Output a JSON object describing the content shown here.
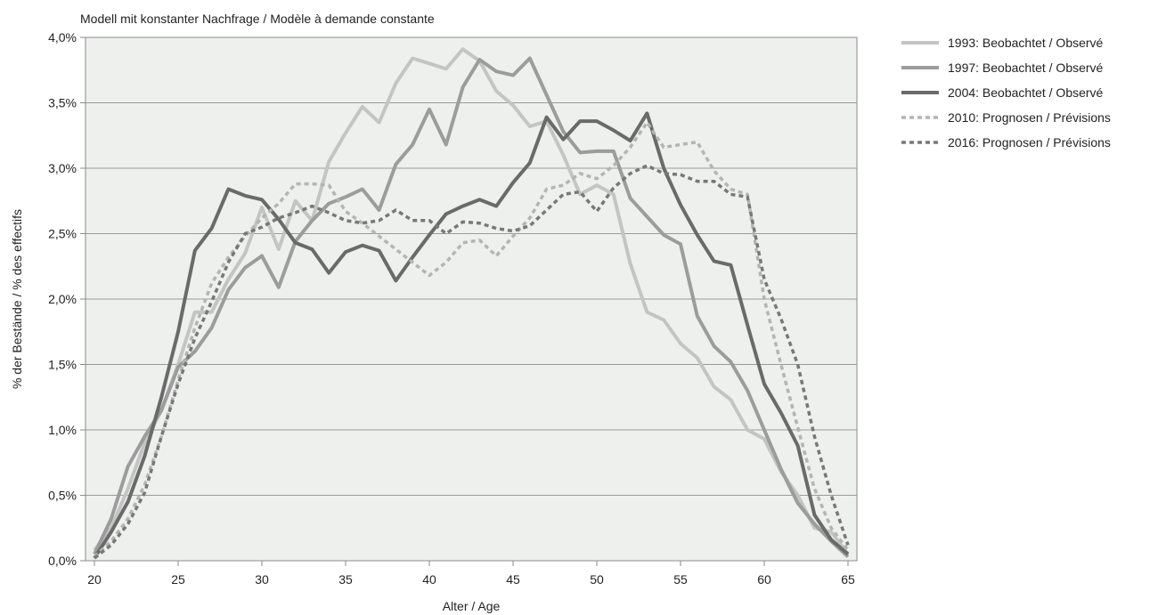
{
  "chart_data": {
    "type": "line",
    "title": "Modell mit konstanter Nachfrage / Modèle à demande constante",
    "xlabel": "Alter / Age",
    "ylabel": "% der Bestände / % des effectifs",
    "xlim": [
      20,
      65
    ],
    "ylim": [
      0,
      4.0
    ],
    "x_ticks": [
      "20",
      "25",
      "30",
      "35",
      "40",
      "45",
      "50",
      "55",
      "60",
      "65"
    ],
    "y_ticks": [
      "0,0%",
      "0,5%",
      "1,0%",
      "1,5%",
      "2,0%",
      "2,5%",
      "3,0%",
      "3,5%",
      "4,0%"
    ],
    "grid": "horizontal",
    "legend_position": "right",
    "x": [
      20,
      21,
      22,
      23,
      24,
      25,
      26,
      27,
      28,
      29,
      30,
      31,
      32,
      33,
      34,
      35,
      36,
      37,
      38,
      39,
      40,
      41,
      42,
      43,
      44,
      45,
      46,
      47,
      48,
      49,
      50,
      51,
      52,
      53,
      54,
      55,
      56,
      57,
      58,
      59,
      60,
      61,
      62,
      63,
      64,
      65
    ],
    "series": [
      {
        "name": "1993: Beobachtet / Observé",
        "color": "#c4c4c4",
        "dash": "solid",
        "values": [
          0.08,
          0.25,
          0.55,
          0.9,
          1.15,
          1.5,
          1.9,
          1.9,
          2.15,
          2.35,
          2.7,
          2.38,
          2.75,
          2.6,
          3.05,
          3.27,
          3.47,
          3.35,
          3.65,
          3.84,
          3.8,
          3.76,
          3.91,
          3.82,
          3.59,
          3.48,
          3.32,
          3.36,
          3.1,
          2.8,
          2.87,
          2.8,
          2.27,
          1.9,
          1.84,
          1.66,
          1.55,
          1.33,
          1.23,
          1.0,
          0.93,
          0.68,
          0.5,
          0.25,
          0.22,
          0.05
        ]
      },
      {
        "name": "1997: Beobachtet / Observé",
        "color": "#9c9c9c",
        "dash": "solid",
        "values": [
          0.05,
          0.32,
          0.72,
          0.95,
          1.15,
          1.48,
          1.6,
          1.78,
          2.07,
          2.24,
          2.33,
          2.09,
          2.44,
          2.6,
          2.73,
          2.78,
          2.84,
          2.68,
          3.03,
          3.18,
          3.45,
          3.18,
          3.62,
          3.83,
          3.74,
          3.71,
          3.84,
          3.56,
          3.28,
          3.12,
          3.13,
          3.13,
          2.77,
          2.63,
          2.49,
          2.42,
          1.87,
          1.64,
          1.52,
          1.3,
          1.0,
          0.7,
          0.44,
          0.28,
          0.15,
          0.03
        ]
      },
      {
        "name": "2004: Beobachtet / Observé",
        "color": "#6a6a6a",
        "dash": "solid",
        "values": [
          0.02,
          0.22,
          0.45,
          0.8,
          1.25,
          1.75,
          2.37,
          2.54,
          2.84,
          2.79,
          2.76,
          2.61,
          2.43,
          2.38,
          2.2,
          2.36,
          2.41,
          2.37,
          2.14,
          2.32,
          2.49,
          2.65,
          2.71,
          2.76,
          2.71,
          2.89,
          3.04,
          3.39,
          3.22,
          3.36,
          3.36,
          3.29,
          3.21,
          3.42,
          3.0,
          2.72,
          2.49,
          2.29,
          2.26,
          1.8,
          1.35,
          1.13,
          0.88,
          0.35,
          0.16,
          0.05
        ]
      },
      {
        "name": "2010: Prognosen / Prévisions",
        "color": "#b4b4b4",
        "dash": "dotted",
        "values": [
          0.03,
          0.15,
          0.32,
          0.58,
          0.95,
          1.38,
          1.78,
          2.12,
          2.32,
          2.48,
          2.62,
          2.73,
          2.88,
          2.88,
          2.87,
          2.67,
          2.58,
          2.48,
          2.38,
          2.28,
          2.18,
          2.28,
          2.43,
          2.45,
          2.33,
          2.48,
          2.62,
          2.84,
          2.87,
          2.96,
          2.92,
          3.02,
          3.16,
          3.35,
          3.16,
          3.18,
          3.2,
          2.98,
          2.84,
          2.8,
          2.0,
          1.5,
          1.02,
          0.55,
          0.25,
          0.08
        ]
      },
      {
        "name": "2016: Prognosen / Prévisions",
        "color": "#787878",
        "dash": "dotted",
        "values": [
          0.02,
          0.12,
          0.28,
          0.52,
          0.95,
          1.35,
          1.7,
          1.98,
          2.28,
          2.5,
          2.55,
          2.62,
          2.66,
          2.71,
          2.66,
          2.6,
          2.58,
          2.6,
          2.68,
          2.6,
          2.6,
          2.5,
          2.59,
          2.58,
          2.54,
          2.52,
          2.56,
          2.68,
          2.8,
          2.82,
          2.67,
          2.85,
          2.96,
          3.02,
          2.96,
          2.95,
          2.9,
          2.9,
          2.8,
          2.78,
          2.15,
          1.85,
          1.5,
          0.95,
          0.5,
          0.12
        ]
      }
    ]
  }
}
